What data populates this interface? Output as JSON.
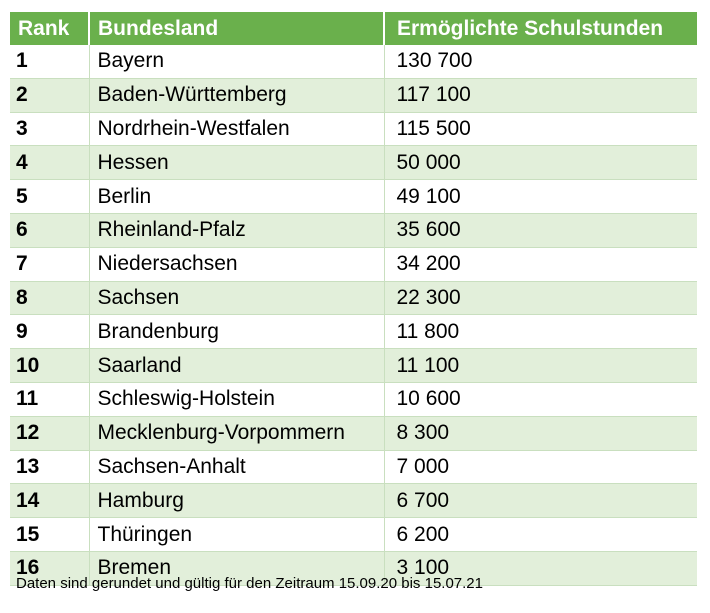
{
  "chart_data": {
    "type": "table",
    "columns": [
      "Rank",
      "Bundesland",
      "Ermöglichte Schulstunden"
    ],
    "rows": [
      {
        "rank": "1",
        "state": "Bayern",
        "hours": "130 700"
      },
      {
        "rank": "2",
        "state": "Baden-Württemberg",
        "hours": "117 100"
      },
      {
        "rank": "3",
        "state": "Nordrhein-Westfalen",
        "hours": "115 500"
      },
      {
        "rank": "4",
        "state": "Hessen",
        "hours": "50 000"
      },
      {
        "rank": "5",
        "state": "Berlin",
        "hours": "49 100"
      },
      {
        "rank": "6",
        "state": "Rheinland-Pfalz",
        "hours": "35 600"
      },
      {
        "rank": "7",
        "state": "Niedersachsen",
        "hours": "34 200"
      },
      {
        "rank": "8",
        "state": "Sachsen",
        "hours": "22 300"
      },
      {
        "rank": "9",
        "state": "Brandenburg",
        "hours": "11 800"
      },
      {
        "rank": "10",
        "state": "Saarland",
        "hours": "11 100"
      },
      {
        "rank": "11",
        "state": "Schleswig-Holstein",
        "hours": "10 600"
      },
      {
        "rank": "12",
        "state": "Mecklenburg-Vorpommern",
        "hours": "8 300"
      },
      {
        "rank": "13",
        "state": "Sachsen-Anhalt",
        "hours": "7 000"
      },
      {
        "rank": "14",
        "state": "Hamburg",
        "hours": "6 700"
      },
      {
        "rank": "15",
        "state": "Thüringen",
        "hours": "6 200"
      },
      {
        "rank": "16",
        "state": "Bremen",
        "hours": "3 100"
      }
    ],
    "footnote": "Daten sind gerundet und gültig für den Zeitraum 15.09.20 bis 15.07.21"
  },
  "colors": {
    "header_bg": "#6ab04c",
    "header_text": "#ffffff",
    "row_even_bg": "#e2efda",
    "row_odd_bg": "#ffffff"
  }
}
